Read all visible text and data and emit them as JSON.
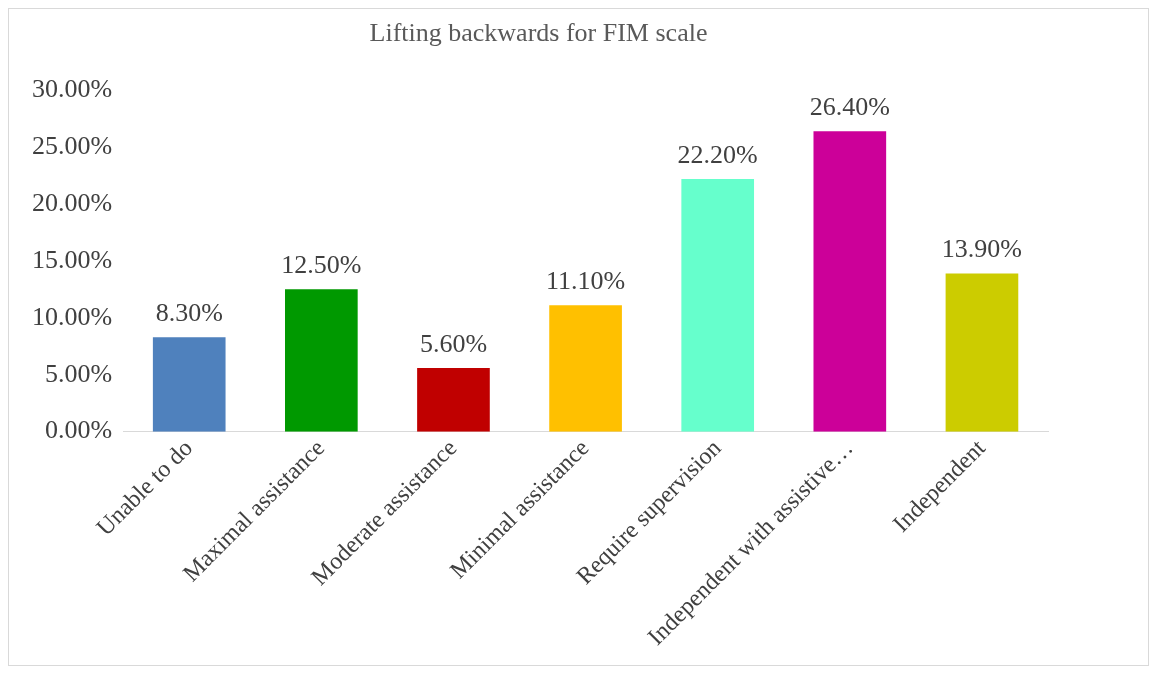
{
  "chart_data": {
    "type": "bar",
    "title": "Lifting backwards for FIM scale",
    "categories": [
      "Unable to do",
      "Maximal assistance",
      "Moderate assistance",
      "Minimal assistance",
      "Require supervision",
      "Independent with assistive…",
      "Independent"
    ],
    "values": [
      8.3,
      12.5,
      5.6,
      11.1,
      22.2,
      26.4,
      13.9
    ],
    "colors": [
      "#4f81bd",
      "#009900",
      "#c00000",
      "#ffc000",
      "#66ffcc",
      "#cc0099",
      "#cccc00"
    ],
    "value_labels": [
      "8.30%",
      "12.50%",
      "5.60%",
      "11.10%",
      "22.20%",
      "26.40%",
      "13.90%"
    ],
    "ylim": [
      0,
      30
    ],
    "yticks": [
      {
        "value": 0,
        "label": "0.00%"
      },
      {
        "value": 5,
        "label": "5.00%"
      },
      {
        "value": 10,
        "label": "10.00%"
      },
      {
        "value": 15,
        "label": "15.00%"
      },
      {
        "value": 20,
        "label": "20.00%"
      },
      {
        "value": 25,
        "label": "25.00%"
      },
      {
        "value": 30,
        "label": "30.00%"
      }
    ],
    "grid": false,
    "legend": false
  }
}
